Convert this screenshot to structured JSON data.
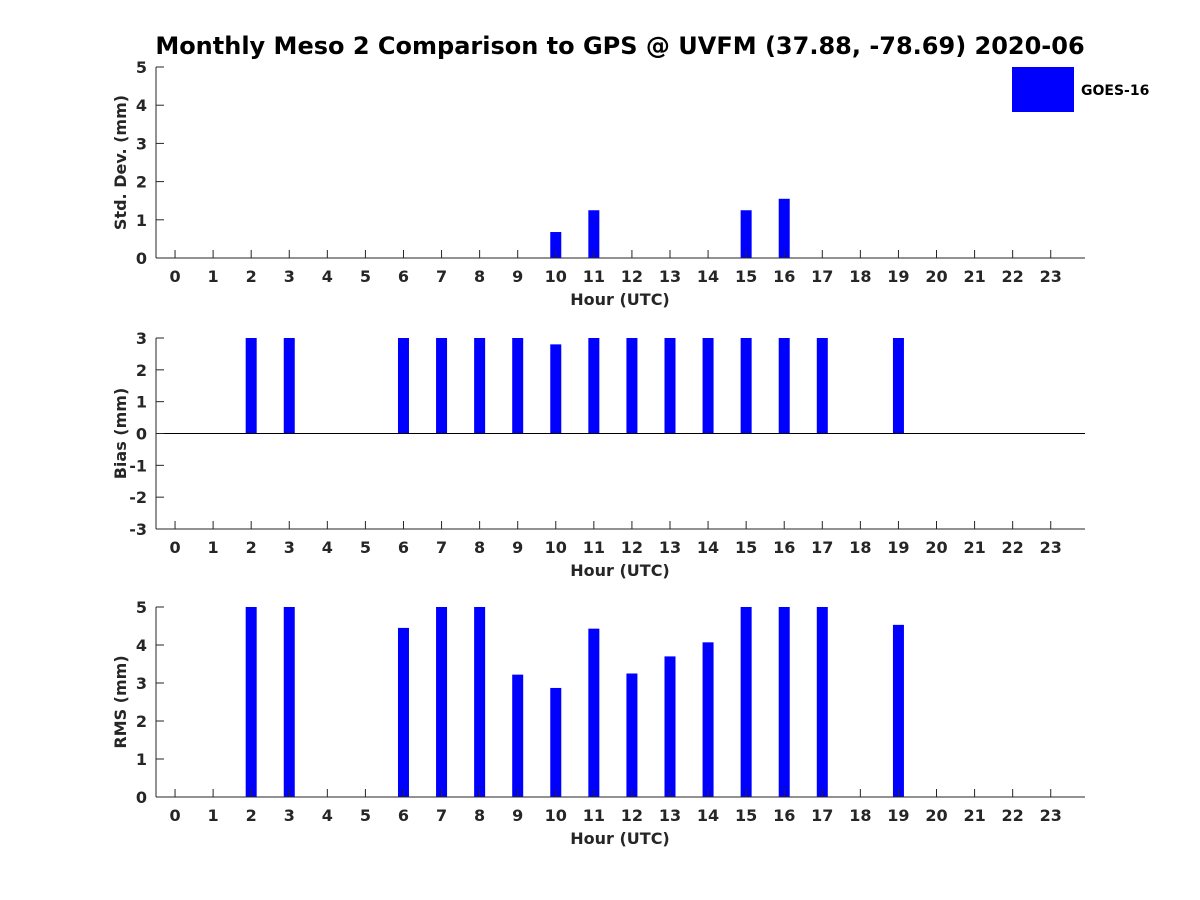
{
  "title": "Monthly Meso 2 Comparison to GPS @ UVFM (37.88, -78.69) 2020-06",
  "legend": {
    "label": "GOES-16",
    "color": "#0000ff",
    "placement": "top-right"
  },
  "colors": {
    "bar": "#0000ff",
    "axis": "#262626"
  },
  "chart_data": [
    {
      "type": "bar",
      "xlabel": "Hour (UTC)",
      "ylabel": "Std. Dev. (mm)",
      "ylim": [
        0,
        5
      ],
      "yticks": [
        0,
        1,
        2,
        3,
        4,
        5
      ],
      "categories": [
        0,
        1,
        2,
        3,
        4,
        5,
        6,
        7,
        8,
        9,
        10,
        11,
        12,
        13,
        14,
        15,
        16,
        17,
        18,
        19,
        20,
        21,
        22,
        23
      ],
      "values": [
        null,
        null,
        0,
        0,
        null,
        null,
        0,
        0,
        0,
        0,
        0.68,
        1.25,
        0,
        0,
        0,
        1.25,
        1.55,
        0,
        null,
        0,
        null,
        null,
        null,
        null
      ],
      "series": [
        {
          "name": "GOES-16"
        }
      ]
    },
    {
      "type": "bar",
      "xlabel": "Hour (UTC)",
      "ylabel": "Bias (mm)",
      "ylim": [
        -3,
        3
      ],
      "yticks": [
        -3,
        -2,
        -1,
        0,
        1,
        2,
        3
      ],
      "categories": [
        0,
        1,
        2,
        3,
        4,
        5,
        6,
        7,
        8,
        9,
        10,
        11,
        12,
        13,
        14,
        15,
        16,
        17,
        18,
        19,
        20,
        21,
        22,
        23
      ],
      "values": [
        null,
        null,
        3,
        3,
        null,
        null,
        3,
        3,
        3,
        3,
        2.8,
        3,
        3,
        3,
        3,
        3,
        3,
        3,
        null,
        3,
        null,
        null,
        null,
        null
      ],
      "series": [
        {
          "name": "GOES-16"
        }
      ]
    },
    {
      "type": "bar",
      "xlabel": "Hour (UTC)",
      "ylabel": "RMS (mm)",
      "ylim": [
        0,
        5
      ],
      "yticks": [
        0,
        1,
        2,
        3,
        4,
        5
      ],
      "categories": [
        0,
        1,
        2,
        3,
        4,
        5,
        6,
        7,
        8,
        9,
        10,
        11,
        12,
        13,
        14,
        15,
        16,
        17,
        18,
        19,
        20,
        21,
        22,
        23
      ],
      "values": [
        null,
        null,
        5,
        5,
        null,
        null,
        4.45,
        5,
        5,
        3.22,
        2.87,
        4.43,
        3.25,
        3.7,
        4.07,
        5,
        5,
        5,
        null,
        4.53,
        null,
        null,
        null,
        null
      ],
      "series": [
        {
          "name": "GOES-16"
        }
      ]
    }
  ]
}
